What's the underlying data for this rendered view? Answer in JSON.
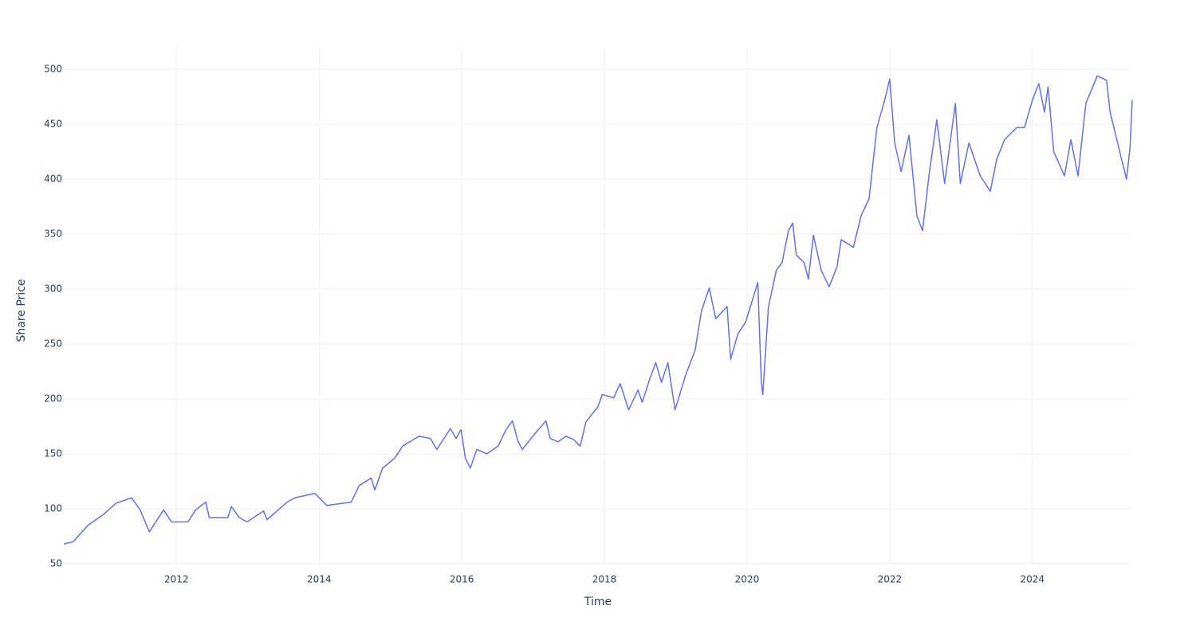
{
  "chart_data": {
    "type": "line",
    "x_label": "Time",
    "y_label": "Share Price",
    "x": [
      2010.42,
      2010.55,
      2010.76,
      2010.98,
      2011.15,
      2011.37,
      2011.49,
      2011.62,
      2011.82,
      2011.93,
      2012.16,
      2012.27,
      2012.41,
      2012.46,
      2012.72,
      2012.77,
      2012.88,
      2012.99,
      2013.22,
      2013.27,
      2013.55,
      2013.66,
      2013.94,
      2014.11,
      2014.45,
      2014.56,
      2014.73,
      2014.78,
      2014.89,
      2015.06,
      2015.17,
      2015.4,
      2015.56,
      2015.65,
      2015.79,
      2015.84,
      2015.92,
      2015.99,
      2016.05,
      2016.12,
      2016.21,
      2016.35,
      2016.51,
      2016.62,
      2016.71,
      2016.79,
      2016.85,
      2017.02,
      2017.18,
      2017.24,
      2017.35,
      2017.46,
      2017.57,
      2017.66,
      2017.74,
      2017.91,
      2017.97,
      2018.13,
      2018.22,
      2018.34,
      2018.47,
      2018.53,
      2018.64,
      2018.72,
      2018.8,
      2018.89,
      2018.99,
      2019.14,
      2019.27,
      2019.36,
      2019.47,
      2019.56,
      2019.72,
      2019.77,
      2019.87,
      2019.98,
      2020.15,
      2020.2,
      2020.22,
      2020.3,
      2020.41,
      2020.49,
      2020.58,
      2020.64,
      2020.69,
      2020.8,
      2020.86,
      2020.93,
      2021.04,
      2021.15,
      2021.26,
      2021.32,
      2021.49,
      2021.6,
      2021.71,
      2021.82,
      2021.93,
      2022.0,
      2022.07,
      2022.16,
      2022.27,
      2022.38,
      2022.46,
      2022.55,
      2022.66,
      2022.77,
      2022.92,
      2022.99,
      2023.11,
      2023.27,
      2023.41,
      2023.5,
      2023.61,
      2023.78,
      2023.89,
      2024.0,
      2024.09,
      2024.17,
      2024.22,
      2024.3,
      2024.45,
      2024.54,
      2024.64,
      2024.75,
      2024.91,
      2025.04,
      2025.09,
      2025.21,
      2025.32,
      2025.37,
      2025.4
    ],
    "series": [
      {
        "name": "Share Price",
        "color": "#636efa",
        "values": [
          68,
          70,
          85,
          95,
          105,
          110,
          99,
          79,
          99,
          88,
          88,
          99,
          106,
          92,
          92,
          102,
          92,
          88,
          98,
          90,
          106,
          110,
          114,
          103,
          106,
          121,
          128,
          117,
          137,
          146,
          157,
          166,
          164,
          154,
          168,
          173,
          164,
          172,
          146,
          137,
          154,
          150,
          157,
          172,
          180,
          161,
          154,
          168,
          180,
          164,
          161,
          166,
          163,
          157,
          179,
          193,
          204,
          201,
          214,
          190,
          208,
          197,
          219,
          233,
          215,
          233,
          190,
          222,
          244,
          280,
          301,
          273,
          284,
          236,
          259,
          270,
          306,
          215,
          204,
          284,
          317,
          324,
          353,
          360,
          331,
          324,
          309,
          349,
          317,
          302,
          320,
          345,
          338,
          367,
          382,
          447,
          472,
          491,
          433,
          407,
          440,
          367,
          353,
          403,
          454,
          396,
          469,
          396,
          433,
          403,
          389,
          418,
          436,
          447,
          447,
          472,
          487,
          461,
          484,
          425,
          403,
          436,
          403,
          469,
          494,
          490,
          461,
          429,
          400,
          429,
          472
        ]
      }
    ],
    "xlim": [
      2010.42,
      2025.4
    ],
    "xticks": [
      2012,
      2014,
      2016,
      2018,
      2020,
      2022,
      2024
    ],
    "ylim": [
      48.5,
      519.6
    ],
    "yticks": [
      50,
      100,
      150,
      200,
      250,
      300,
      350,
      400,
      450,
      500
    ],
    "grid": true
  }
}
